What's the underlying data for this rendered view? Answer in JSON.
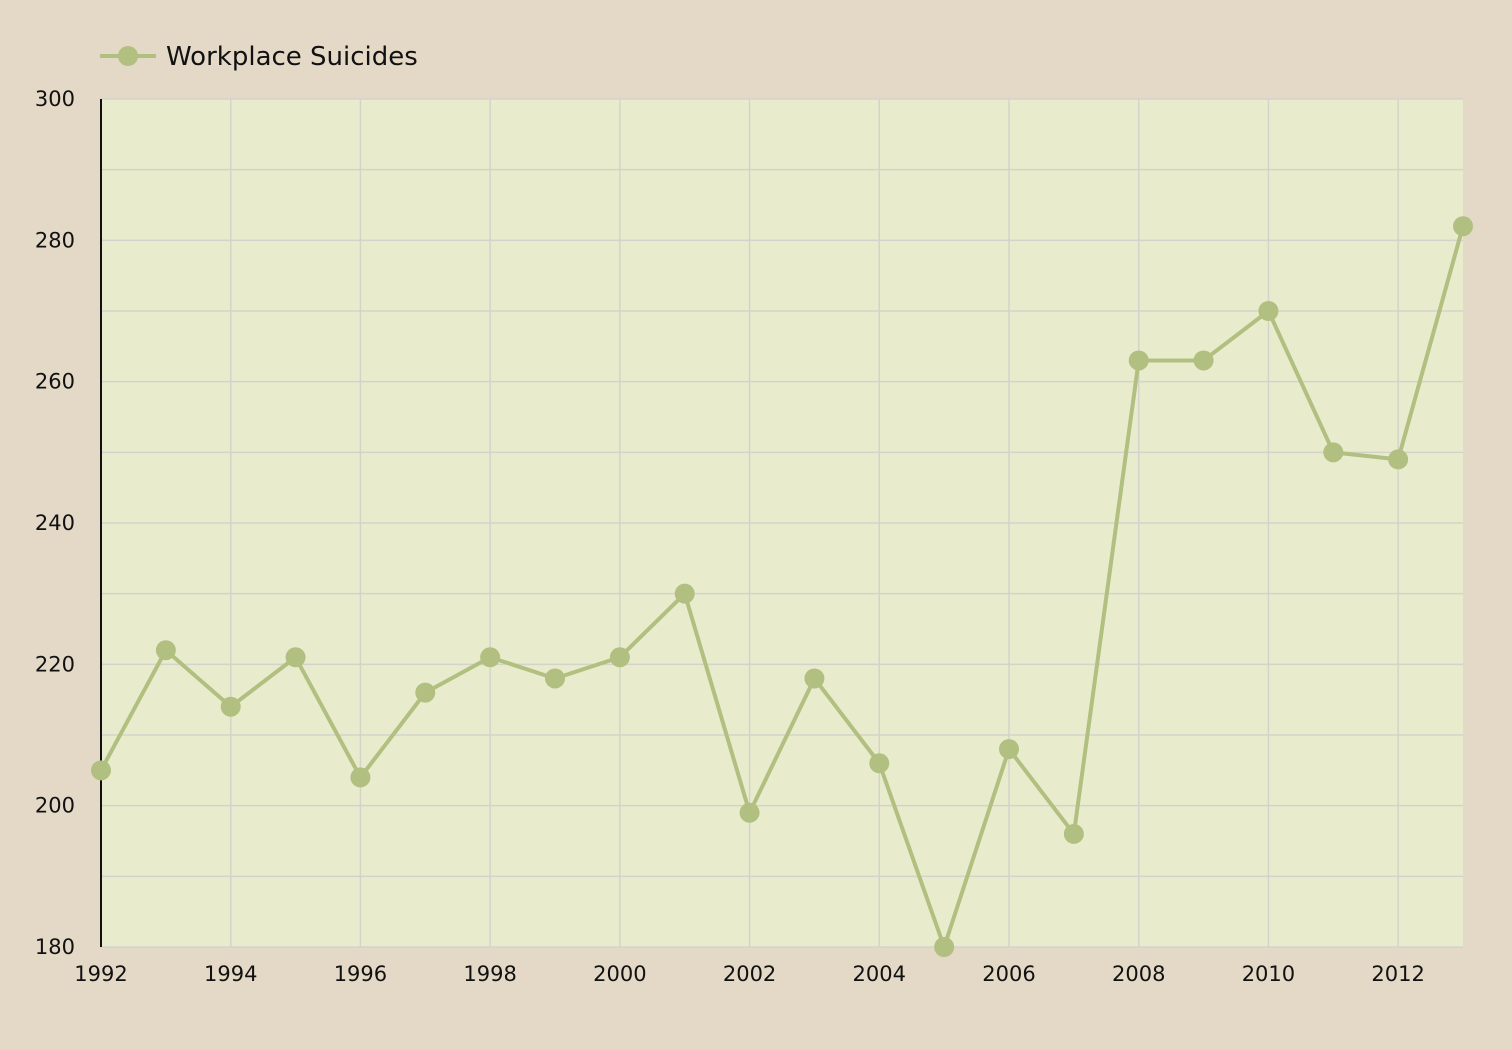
{
  "chart_data": {
    "type": "line",
    "title": "",
    "xlabel": "",
    "ylabel": "",
    "x": [
      1992,
      1993,
      1994,
      1995,
      1996,
      1997,
      1998,
      1999,
      2000,
      2001,
      2002,
      2003,
      2004,
      2005,
      2006,
      2007,
      2008,
      2009,
      2010,
      2011,
      2012,
      2013
    ],
    "series": [
      {
        "name": "Workplace Suicides",
        "values": [
          205,
          222,
          214,
          221,
          204,
          216,
          221,
          218,
          221,
          230,
          199,
          218,
          206,
          180,
          208,
          196,
          263,
          263,
          270,
          250,
          249,
          282
        ],
        "color": "#b1bf80"
      }
    ],
    "xlim": [
      1992,
      2013
    ],
    "ylim": [
      180,
      300
    ],
    "x_ticks": [
      "1992",
      "1994",
      "1996",
      "1998",
      "2000",
      "2002",
      "2004",
      "2006",
      "2008",
      "2010",
      "2012"
    ],
    "y_ticks": [
      "180",
      "200",
      "220",
      "240",
      "260",
      "280",
      "300"
    ],
    "grid": true,
    "legend_position": "top-left",
    "colors": {
      "page_background": "#e4d9c7",
      "plot_background": "#e9eccc",
      "grid": "#d3d3cb",
      "axis": "#111111"
    }
  }
}
